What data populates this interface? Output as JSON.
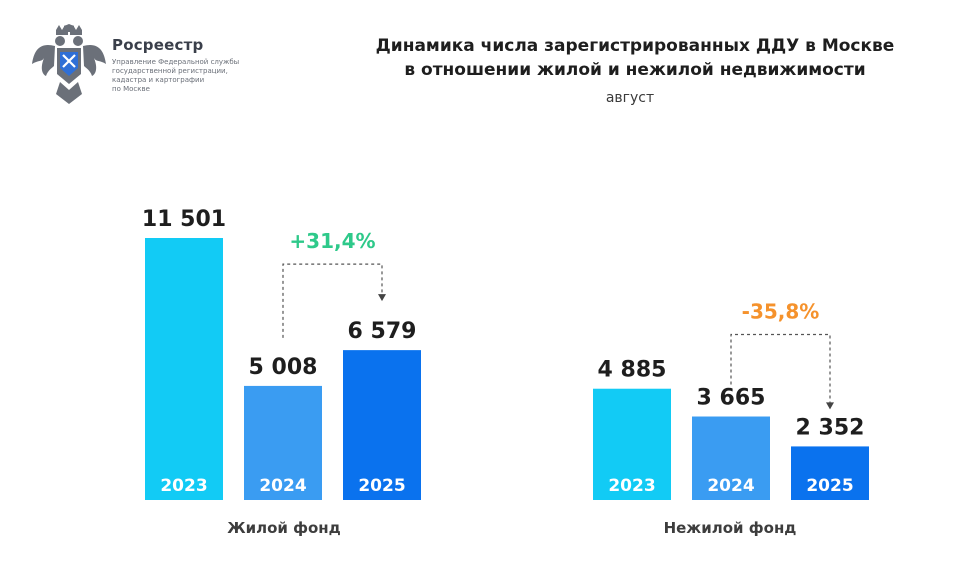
{
  "logo": {
    "name": "Росреестр",
    "sub_lines": [
      "Управление Федеральной службы",
      "государственной регистрации,",
      "кадастра и картографии",
      "по Москве"
    ]
  },
  "header": {
    "title_lines": [
      "Динамика числа зарегистрированных ДДУ в Москве",
      "в отношении жилой и нежилой недвижимости"
    ],
    "subtitle": "август"
  },
  "colors": {
    "y2023": "#12cbf5",
    "y2024": "#3a9cf2",
    "y2025": "#0a72ee",
    "growth": "#2ec98a",
    "decline": "#f5922c"
  },
  "chart_data": {
    "type": "bar",
    "groups": [
      {
        "name": "Жилой фонд",
        "categories": [
          "2023",
          "2024",
          "2025"
        ],
        "values": [
          11501,
          5008,
          6579
        ],
        "value_labels": [
          "11 501",
          "5 008",
          "6 579"
        ],
        "change": {
          "label": "+31,4%",
          "from": "2024",
          "to": "2025",
          "direction": "up"
        }
      },
      {
        "name": "Нежилой фонд",
        "categories": [
          "2023",
          "2024",
          "2025"
        ],
        "values": [
          4885,
          3665,
          2352
        ],
        "value_labels": [
          "4 885",
          "3 665",
          "2 352"
        ],
        "change": {
          "label": "-35,8%",
          "from": "2024",
          "to": "2025",
          "direction": "down"
        }
      }
    ],
    "legend": "none",
    "grid": false
  }
}
